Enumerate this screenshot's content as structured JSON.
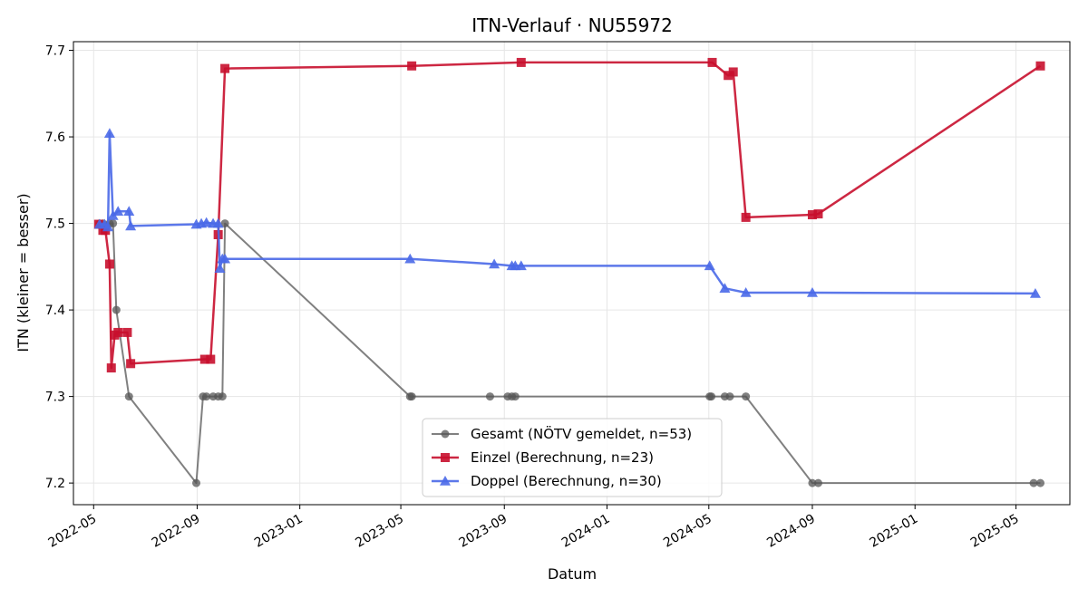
{
  "chart_data": {
    "type": "line",
    "title": "ITN-Verlauf · NU55972",
    "xlabel": "Datum",
    "ylabel": "ITN  (kleiner = besser)",
    "x_ticks": [
      "2022-05",
      "2022-09",
      "2023-01",
      "2023-05",
      "2023-09",
      "2024-01",
      "2024-05",
      "2024-09",
      "2025-01",
      "2025-05"
    ],
    "y_ticks": [
      "7.2",
      "7.3",
      "7.4",
      "7.5",
      "7.6",
      "7.7"
    ],
    "xlim": [
      "2022-04-07",
      "2025-07-04"
    ],
    "ylim": [
      7.175,
      7.71
    ],
    "grid": true,
    "legend_position": "lower-center",
    "series": [
      {
        "name": "Gesamt (NÖTV gemeldet, n=53)",
        "color": "#555555",
        "marker": "circle",
        "points": [
          [
            "2022-05-08",
            7.5
          ],
          [
            "2022-05-12",
            7.5
          ],
          [
            "2022-05-20",
            7.5
          ],
          [
            "2022-05-24",
            7.5
          ],
          [
            "2022-05-28",
            7.4
          ],
          [
            "2022-06-12",
            7.3
          ],
          [
            "2022-08-31",
            7.2
          ],
          [
            "2022-09-08",
            7.3
          ],
          [
            "2022-09-12",
            7.3
          ],
          [
            "2022-09-20",
            7.3
          ],
          [
            "2022-09-26",
            7.3
          ],
          [
            "2022-10-01",
            7.3
          ],
          [
            "2022-10-04",
            7.5
          ],
          [
            "2023-05-12",
            7.3
          ],
          [
            "2023-05-14",
            7.3
          ],
          [
            "2023-08-15",
            7.3
          ],
          [
            "2023-09-05",
            7.3
          ],
          [
            "2023-09-10",
            7.3
          ],
          [
            "2023-09-14",
            7.3
          ],
          [
            "2024-05-02",
            7.3
          ],
          [
            "2024-05-04",
            7.3
          ],
          [
            "2024-05-20",
            7.3
          ],
          [
            "2024-05-26",
            7.3
          ],
          [
            "2024-06-14",
            7.3
          ],
          [
            "2024-09-01",
            7.2
          ],
          [
            "2024-09-08",
            7.2
          ],
          [
            "2025-05-22",
            7.2
          ],
          [
            "2025-05-30",
            7.2
          ]
        ]
      },
      {
        "name": "Einzel (Berechnung, n=23)",
        "color": "#c8102e",
        "marker": "square",
        "points": [
          [
            "2022-05-07",
            7.499
          ],
          [
            "2022-05-12",
            7.492
          ],
          [
            "2022-05-15",
            7.492
          ],
          [
            "2022-05-20",
            7.453
          ],
          [
            "2022-05-22",
            7.333
          ],
          [
            "2022-05-26",
            7.371
          ],
          [
            "2022-05-30",
            7.374
          ],
          [
            "2022-06-10",
            7.374
          ],
          [
            "2022-06-14",
            7.338
          ],
          [
            "2022-09-10",
            7.343
          ],
          [
            "2022-09-17",
            7.343
          ],
          [
            "2022-09-26",
            7.487
          ],
          [
            "2022-10-04",
            7.679
          ],
          [
            "2023-05-14",
            7.682
          ],
          [
            "2023-09-21",
            7.686
          ],
          [
            "2024-05-05",
            7.686
          ],
          [
            "2024-05-24",
            7.671
          ],
          [
            "2024-05-30",
            7.675
          ],
          [
            "2024-06-14",
            7.507
          ],
          [
            "2024-09-01",
            7.51
          ],
          [
            "2024-09-08",
            7.511
          ],
          [
            "2025-05-30",
            7.682
          ]
        ]
      },
      {
        "name": "Doppel (Berechnung, n=30)",
        "color": "#4a69e8",
        "marker": "triangle",
        "points": [
          [
            "2022-05-08",
            7.499
          ],
          [
            "2022-05-14",
            7.499
          ],
          [
            "2022-05-18",
            7.496
          ],
          [
            "2022-05-20",
            7.604
          ],
          [
            "2022-05-24",
            7.509
          ],
          [
            "2022-05-30",
            7.514
          ],
          [
            "2022-06-12",
            7.514
          ],
          [
            "2022-06-14",
            7.497
          ],
          [
            "2022-08-31",
            7.499
          ],
          [
            "2022-09-06",
            7.5
          ],
          [
            "2022-09-12",
            7.501
          ],
          [
            "2022-09-20",
            7.5
          ],
          [
            "2022-09-26",
            7.5
          ],
          [
            "2022-09-28",
            7.448
          ],
          [
            "2022-10-01",
            7.459
          ],
          [
            "2022-10-04",
            7.459
          ],
          [
            "2023-05-12",
            7.459
          ],
          [
            "2023-08-20",
            7.453
          ],
          [
            "2023-09-10",
            7.451
          ],
          [
            "2023-09-14",
            7.451
          ],
          [
            "2023-09-21",
            7.451
          ],
          [
            "2024-05-02",
            7.451
          ],
          [
            "2024-05-20",
            7.425
          ],
          [
            "2024-06-14",
            7.42
          ],
          [
            "2024-09-01",
            7.42
          ],
          [
            "2025-05-24",
            7.419
          ]
        ]
      }
    ]
  }
}
